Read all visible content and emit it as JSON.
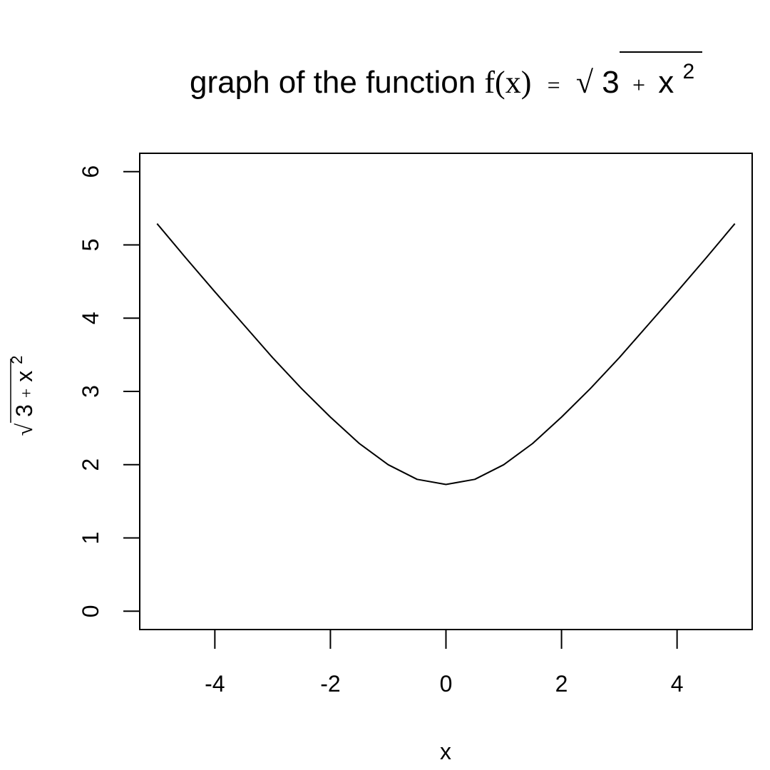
{
  "chart_data": {
    "type": "line",
    "title": {
      "prefix": "graph of the function ",
      "fx": "f(x)",
      "equals": "=",
      "sqrt": "√",
      "three": "3",
      "plus": "+",
      "x": "x",
      "exp": "2"
    },
    "xlabel": "x",
    "ylabel": {
      "sqrt": "√",
      "three": "3",
      "plus": "+",
      "x": "x",
      "exp": "2"
    },
    "xlim": [
      -5.3,
      5.3
    ],
    "ylim": [
      -0.25,
      6.25
    ],
    "xticks": [
      -4,
      -2,
      0,
      2,
      4
    ],
    "xtick_labels": [
      "-4",
      "-2",
      "0",
      "2",
      "4"
    ],
    "yticks": [
      0,
      1,
      2,
      3,
      4,
      5,
      6
    ],
    "ytick_labels": [
      "0",
      "1",
      "2",
      "3",
      "4",
      "5",
      "6"
    ],
    "grid": false,
    "legend": "none",
    "series": [
      {
        "color": "#000000",
        "x": [
          -5,
          -4.5,
          -4,
          -3.5,
          -3,
          -2.5,
          -2,
          -1.5,
          -1,
          -0.5,
          0,
          0.5,
          1,
          1.5,
          2,
          2.5,
          3,
          3.5,
          4,
          4.5,
          5
        ],
        "y": [
          5.29,
          4.82,
          4.36,
          3.91,
          3.46,
          3.04,
          2.65,
          2.29,
          2.0,
          1.8,
          1.73,
          1.8,
          2.0,
          2.29,
          2.65,
          3.04,
          3.46,
          3.91,
          4.36,
          4.82,
          5.29
        ]
      }
    ]
  }
}
